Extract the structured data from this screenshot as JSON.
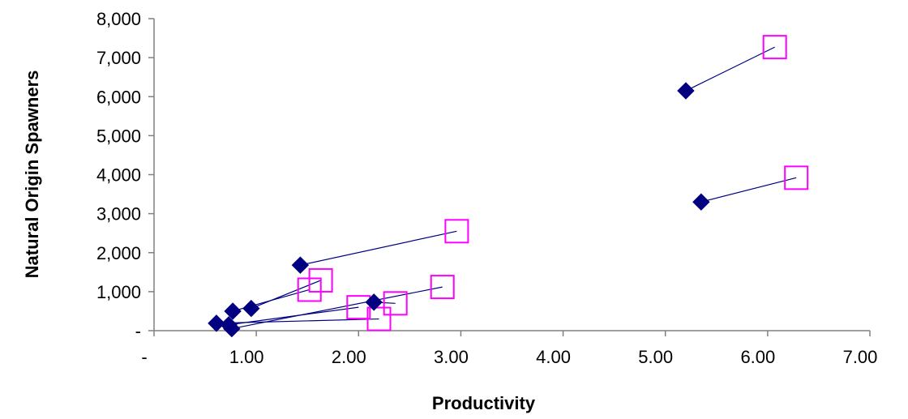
{
  "chart_data": {
    "type": "scatter",
    "xlabel": "Productivity",
    "ylabel": "Natural Origin Spawners",
    "xlim": [
      0,
      7
    ],
    "ylim": [
      0,
      8000
    ],
    "x_ticks": [
      {
        "value": 0,
        "label": "-"
      },
      {
        "value": 1,
        "label": "1.00"
      },
      {
        "value": 2,
        "label": "2.00"
      },
      {
        "value": 3,
        "label": "3.00"
      },
      {
        "value": 4,
        "label": "4.00"
      },
      {
        "value": 5,
        "label": "5.00"
      },
      {
        "value": 6,
        "label": "6.00"
      },
      {
        "value": 7,
        "label": "7.00"
      }
    ],
    "y_ticks": [
      {
        "value": 0,
        "label": "-"
      },
      {
        "value": 1000,
        "label": "1,000"
      },
      {
        "value": 2000,
        "label": "2,000"
      },
      {
        "value": 3000,
        "label": "3,000"
      },
      {
        "value": 4000,
        "label": "4,000"
      },
      {
        "value": 5000,
        "label": "5,000"
      },
      {
        "value": 6000,
        "label": "6,000"
      },
      {
        "value": 7000,
        "label": "7,000"
      },
      {
        "value": 8000,
        "label": "8,000"
      }
    ],
    "grid": false,
    "legend": "none",
    "colors": {
      "diamond": "#000080",
      "square": "#ff00ff",
      "connector": "#000080",
      "axis": "#808080"
    },
    "series": [
      {
        "marker": "diamond",
        "points": [
          {
            "x": 5.2,
            "y": 6150
          },
          {
            "x": 5.35,
            "y": 3300
          },
          {
            "x": 1.43,
            "y": 1680
          },
          {
            "x": 2.15,
            "y": 730
          },
          {
            "x": 0.95,
            "y": 570
          },
          {
            "x": 0.77,
            "y": 500
          },
          {
            "x": 0.61,
            "y": 190
          },
          {
            "x": 0.73,
            "y": 150
          },
          {
            "x": 0.76,
            "y": 50
          }
        ]
      },
      {
        "marker": "square",
        "points": [
          {
            "x": 6.07,
            "y": 7270
          },
          {
            "x": 6.28,
            "y": 3920
          },
          {
            "x": 2.96,
            "y": 2550
          },
          {
            "x": 2.36,
            "y": 700
          },
          {
            "x": 1.63,
            "y": 1290
          },
          {
            "x": 1.52,
            "y": 1050
          },
          {
            "x": 2.2,
            "y": 300
          },
          {
            "x": 2.0,
            "y": 600
          },
          {
            "x": 2.82,
            "y": 1120
          }
        ]
      }
    ],
    "links": [
      {
        "from": [
          5.2,
          6150
        ],
        "to": [
          6.07,
          7270
        ]
      },
      {
        "from": [
          5.35,
          3300
        ],
        "to": [
          6.28,
          3920
        ]
      },
      {
        "from": [
          1.43,
          1680
        ],
        "to": [
          2.96,
          2550
        ]
      },
      {
        "from": [
          2.15,
          730
        ],
        "to": [
          2.36,
          700
        ]
      },
      {
        "from": [
          0.95,
          570
        ],
        "to": [
          1.63,
          1290
        ]
      },
      {
        "from": [
          0.77,
          500
        ],
        "to": [
          1.52,
          1050
        ]
      },
      {
        "from": [
          0.61,
          190
        ],
        "to": [
          2.2,
          300
        ]
      },
      {
        "from": [
          0.73,
          150
        ],
        "to": [
          2.0,
          600
        ]
      },
      {
        "from": [
          0.76,
          50
        ],
        "to": [
          2.82,
          1120
        ]
      }
    ]
  }
}
